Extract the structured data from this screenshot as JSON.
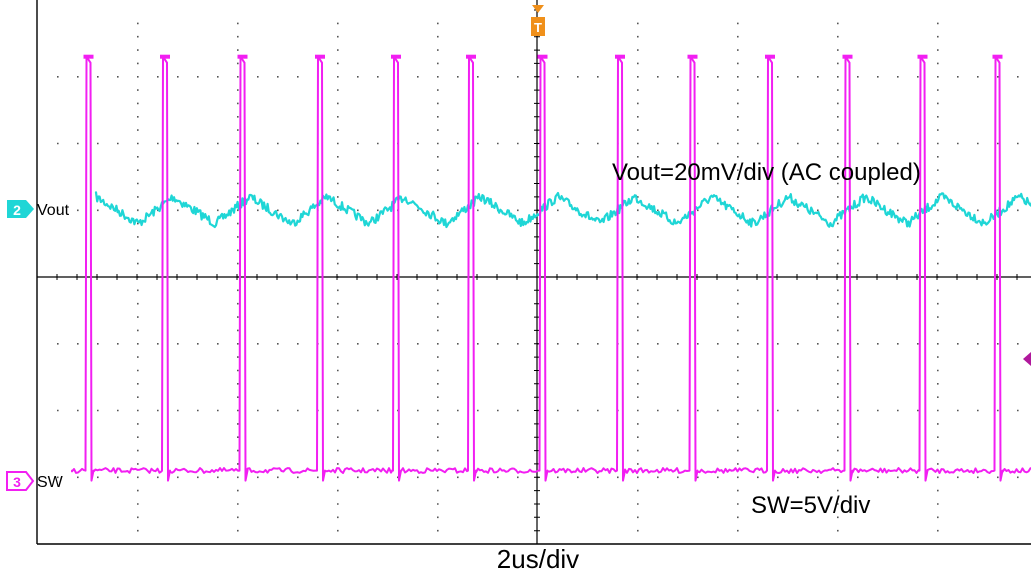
{
  "chart_data": {
    "type": "line",
    "title": "",
    "xlabel": "2us/div",
    "ylabel": "",
    "grid": true,
    "x_divisions": 10,
    "y_divisions": 8,
    "x_range_us": [
      0,
      20
    ],
    "trigger_marker": "T",
    "trigger_x_us": 10,
    "series": [
      {
        "name": "Vout",
        "channel": "2",
        "scale_label": "Vout=20mV/div (AC coupled)",
        "color": "#1fd6d6",
        "waveform": "triangle ripple",
        "cycles_shown": 13,
        "ripple_peak_to_peak_div": 0.4,
        "offset_div": 1.0
      },
      {
        "name": "SW",
        "channel": "3",
        "scale_label": "SW=5V/div",
        "color": "#f21ff2",
        "waveform": "pulse train",
        "pulse_starts_us": [
          0.97,
          2.5,
          4.05,
          5.6,
          7.12,
          8.62,
          10.05,
          11.6,
          13.05,
          14.6,
          16.15,
          17.65,
          19.15
        ],
        "pulse_width_us": 0.12,
        "high_level_div": 3.3,
        "baseline_div": -2.9
      }
    ]
  },
  "labels": {
    "ch2_marker": "2",
    "ch2_name": "Vout",
    "ch3_marker": "3",
    "ch3_name": "SW",
    "vout_scale": "Vout=20mV/div (AC coupled)",
    "sw_scale": "SW=5V/div",
    "timebase": "2us/div",
    "trigger": "T"
  },
  "colors": {
    "grid": "#000000",
    "dots": "#555555",
    "trigger": "#f0901a"
  }
}
